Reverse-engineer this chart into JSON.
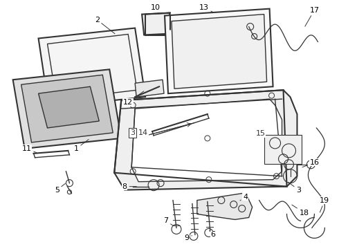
{
  "bg_color": "#ffffff",
  "line_color": "#333333",
  "label_color": "#000000",
  "fig_w": 4.9,
  "fig_h": 3.6,
  "dpi": 100
}
